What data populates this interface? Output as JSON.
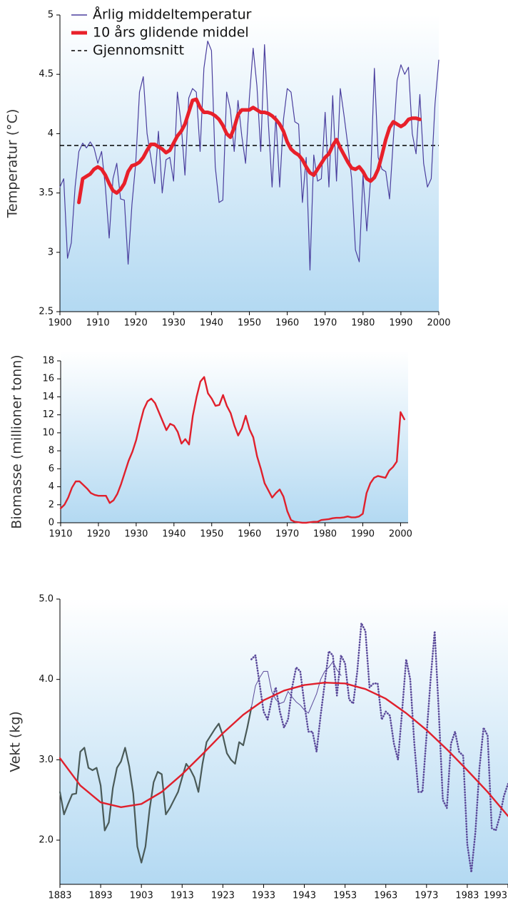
{
  "chart_data": [
    {
      "type": "line",
      "ylabel": "Temperatur (°C)",
      "x": [
        1900,
        1901,
        1902,
        1903,
        1904,
        1905,
        1906,
        1907,
        1908,
        1909,
        1910,
        1911,
        1912,
        1913,
        1914,
        1915,
        1916,
        1917,
        1918,
        1919,
        1920,
        1921,
        1922,
        1923,
        1924,
        1925,
        1926,
        1927,
        1928,
        1929,
        1930,
        1931,
        1932,
        1933,
        1934,
        1935,
        1936,
        1937,
        1938,
        1939,
        1940,
        1941,
        1942,
        1943,
        1944,
        1945,
        1946,
        1947,
        1948,
        1949,
        1950,
        1951,
        1952,
        1953,
        1954,
        1955,
        1956,
        1957,
        1958,
        1959,
        1960,
        1961,
        1962,
        1963,
        1964,
        1965,
        1966,
        1967,
        1968,
        1969,
        1970,
        1971,
        1972,
        1973,
        1974,
        1975,
        1976,
        1977,
        1978,
        1979,
        1980,
        1981,
        1982,
        1983,
        1984,
        1985,
        1986,
        1987,
        1988,
        1989,
        1990,
        1991,
        1992,
        1993,
        1994,
        1995,
        1996,
        1997,
        1998,
        1999,
        2000
      ],
      "series": [
        {
          "name": "Årlig middeltemperatur",
          "color": "#4b3f9e",
          "values": [
            3.55,
            3.62,
            2.95,
            3.08,
            3.55,
            3.85,
            3.92,
            3.88,
            3.93,
            3.88,
            3.75,
            3.85,
            3.55,
            3.12,
            3.62,
            3.75,
            3.45,
            3.44,
            2.9,
            3.4,
            3.75,
            4.35,
            4.48,
            4.0,
            3.8,
            3.58,
            4.02,
            3.5,
            3.78,
            3.8,
            3.6,
            4.35,
            4.08,
            3.65,
            4.3,
            4.38,
            4.35,
            3.85,
            4.55,
            4.78,
            4.7,
            3.72,
            3.42,
            3.44,
            4.35,
            4.2,
            3.85,
            4.28,
            3.98,
            3.75,
            4.3,
            4.72,
            4.4,
            3.85,
            4.75,
            4.1,
            3.55,
            4.15,
            3.55,
            4.12,
            4.38,
            4.35,
            4.1,
            4.08,
            3.42,
            3.8,
            2.85,
            3.82,
            3.6,
            3.62,
            4.18,
            3.55,
            4.32,
            3.6,
            4.38,
            4.15,
            3.9,
            3.62,
            3.02,
            2.92,
            3.65,
            3.18,
            3.62,
            4.55,
            3.8,
            3.7,
            3.68,
            3.45,
            3.95,
            4.45,
            4.58,
            4.5,
            4.56,
            4.0,
            3.83,
            4.33,
            3.75,
            3.55,
            3.62,
            4.25,
            4.62
          ]
        },
        {
          "name": "10 års glidende middel",
          "color": "#e8202a",
          "values": [
            null,
            null,
            null,
            null,
            null,
            3.42,
            3.62,
            3.64,
            3.66,
            3.7,
            3.72,
            3.7,
            3.65,
            3.58,
            3.52,
            3.5,
            3.53,
            3.58,
            3.68,
            3.73,
            3.74,
            3.76,
            3.8,
            3.86,
            3.91,
            3.91,
            3.89,
            3.87,
            3.84,
            3.86,
            3.92,
            3.98,
            4.02,
            4.08,
            4.18,
            4.28,
            4.29,
            4.22,
            4.18,
            4.18,
            4.17,
            4.15,
            4.12,
            4.07,
            4.0,
            3.97,
            4.05,
            4.16,
            4.2,
            4.2,
            4.2,
            4.22,
            4.2,
            4.18,
            4.18,
            4.17,
            4.15,
            4.12,
            4.08,
            4.02,
            3.93,
            3.87,
            3.84,
            3.82,
            3.78,
            3.72,
            3.67,
            3.65,
            3.7,
            3.75,
            3.8,
            3.83,
            3.9,
            3.95,
            3.88,
            3.82,
            3.76,
            3.71,
            3.7,
            3.72,
            3.68,
            3.62,
            3.6,
            3.63,
            3.7,
            3.82,
            3.95,
            4.05,
            4.1,
            4.08,
            4.06,
            4.08,
            4.12,
            4.13,
            4.13,
            4.12,
            null,
            null,
            null,
            null,
            null
          ]
        }
      ],
      "reference_line": {
        "name": "Gjennomsnitt",
        "value": 3.9,
        "color": "#000000",
        "style": "dashed"
      },
      "legend": "upper left",
      "xlim": [
        1900,
        2000
      ],
      "xticks": [
        1900,
        1910,
        1920,
        1930,
        1940,
        1950,
        1960,
        1970,
        1980,
        1990,
        2000
      ],
      "ylim": [
        2.5,
        5
      ],
      "yticks": [
        2.5,
        3,
        3.5,
        4,
        4.5,
        5
      ]
    },
    {
      "type": "line",
      "ylabel": "Biomasse (millioner tonn)",
      "x": [
        1910,
        1911,
        1912,
        1913,
        1914,
        1915,
        1916,
        1917,
        1918,
        1919,
        1920,
        1921,
        1922,
        1923,
        1924,
        1925,
        1926,
        1927,
        1928,
        1929,
        1930,
        1931,
        1932,
        1933,
        1934,
        1935,
        1936,
        1937,
        1938,
        1939,
        1940,
        1941,
        1942,
        1943,
        1944,
        1945,
        1946,
        1947,
        1948,
        1949,
        1950,
        1951,
        1952,
        1953,
        1954,
        1955,
        1956,
        1957,
        1958,
        1959,
        1960,
        1961,
        1962,
        1963,
        1964,
        1965,
        1966,
        1967,
        1968,
        1969,
        1970,
        1971,
        1972,
        1973,
        1974,
        1975,
        1976,
        1977,
        1978,
        1979,
        1980,
        1981,
        1982,
        1983,
        1984,
        1985,
        1986,
        1987,
        1988,
        1989,
        1990,
        1991,
        1992,
        1993,
        1994,
        1995,
        1996,
        1997,
        1998,
        1999,
        2000,
        2001
      ],
      "series": [
        {
          "color": "#e0202c",
          "values": [
            1.6,
            2.0,
            2.8,
            3.9,
            4.6,
            4.6,
            4.2,
            3.8,
            3.3,
            3.1,
            3.0,
            3.0,
            3.0,
            2.2,
            2.5,
            3.2,
            4.3,
            5.6,
            6.9,
            7.9,
            9.2,
            11.0,
            12.6,
            13.5,
            13.8,
            13.3,
            12.3,
            11.3,
            10.3,
            11.0,
            10.8,
            10.1,
            8.8,
            9.3,
            8.7,
            11.9,
            14.0,
            15.7,
            16.2,
            14.4,
            13.8,
            13.0,
            13.1,
            14.2,
            13.0,
            12.2,
            10.8,
            9.7,
            10.5,
            11.9,
            10.4,
            9.5,
            7.4,
            6.0,
            4.4,
            3.6,
            2.8,
            3.3,
            3.7,
            2.9,
            1.3,
            0.3,
            0.1,
            0.05,
            0,
            0,
            0.05,
            0.1,
            0.1,
            0.3,
            0.35,
            0.4,
            0.5,
            0.55,
            0.55,
            0.6,
            0.7,
            0.6,
            0.6,
            0.7,
            1.0,
            3.3,
            4.4,
            5.0,
            5.2,
            5.1,
            5.0,
            5.8,
            6.2,
            6.8,
            12.3,
            11.5
          ]
        }
      ],
      "xlim": [
        1910,
        2002
      ],
      "xticks": [
        1910,
        1920,
        1930,
        1940,
        1950,
        1960,
        1970,
        1980,
        1990,
        2000
      ],
      "ylim": [
        0,
        18
      ],
      "yticks": [
        0,
        2,
        4,
        6,
        8,
        10,
        12,
        14,
        16,
        18
      ]
    },
    {
      "type": "line",
      "ylabel": "Vekt (kg)",
      "series": [
        {
          "color": "#4a5a58",
          "x": [
            1883,
            1884,
            1885,
            1886,
            1887,
            1888,
            1889,
            1890,
            1891,
            1892,
            1893,
            1894,
            1895,
            1896,
            1897,
            1898,
            1899,
            1900,
            1901,
            1902,
            1903,
            1904,
            1905,
            1906,
            1907,
            1908,
            1909,
            1910,
            1911,
            1912,
            1913,
            1914,
            1915,
            1916,
            1917,
            1918,
            1919,
            1920,
            1921,
            1922,
            1923,
            1924,
            1925,
            1926,
            1927,
            1928,
            1929,
            1930
          ],
          "values": [
            2.6,
            2.32,
            2.45,
            2.57,
            2.58,
            3.1,
            3.15,
            2.9,
            2.87,
            2.9,
            2.68,
            2.12,
            2.22,
            2.65,
            2.9,
            2.98,
            3.15,
            2.92,
            2.58,
            1.92,
            1.72,
            1.92,
            2.38,
            2.72,
            2.85,
            2.82,
            2.32,
            2.4,
            2.5,
            2.6,
            2.78,
            2.95,
            2.88,
            2.78,
            2.6,
            2.95,
            3.22,
            3.3,
            3.38,
            3.45,
            3.3,
            3.08,
            3.0,
            2.95,
            3.22,
            3.18,
            3.4,
            3.65
          ]
        },
        {
          "color": "#5b4a9a",
          "x": [
            1930,
            1931,
            1932,
            1933,
            1934,
            1935,
            1936,
            1937,
            1938,
            1939,
            1940,
            1941,
            1942,
            1943,
            1944,
            1945,
            1946,
            1947,
            1948,
            1949,
            1950,
            1951,
            1952
          ],
          "values": [
            3.65,
            3.92,
            4.02,
            4.1,
            4.1,
            3.85,
            3.75,
            3.7,
            3.72,
            3.85,
            3.78,
            3.72,
            3.68,
            3.62,
            3.58,
            3.7,
            3.82,
            4.0,
            4.1,
            4.15,
            4.22,
            4.12,
            4.05
          ]
        },
        {
          "color": "#5b4a9a",
          "style": "dotted",
          "x": [
            1930,
            1931,
            1932,
            1933,
            1934,
            1935,
            1936,
            1937,
            1938,
            1939,
            1940,
            1941,
            1942,
            1943,
            1944,
            1945,
            1946,
            1947,
            1948,
            1949,
            1950,
            1951,
            1952,
            1953,
            1954,
            1955,
            1956,
            1957,
            1958,
            1959,
            1960,
            1961,
            1962,
            1963,
            1964,
            1965,
            1966,
            1967,
            1968,
            1969,
            1970,
            1971,
            1972,
            1973,
            1974,
            1975,
            1976,
            1977,
            1978,
            1979,
            1980,
            1981,
            1982,
            1983,
            1984,
            1985,
            1986,
            1987,
            1988,
            1989,
            1990,
            1991,
            1992,
            1993
          ],
          "values": [
            4.25,
            4.3,
            3.95,
            3.6,
            3.5,
            3.75,
            3.9,
            3.6,
            3.4,
            3.5,
            3.9,
            4.15,
            4.1,
            3.7,
            3.35,
            3.35,
            3.1,
            3.55,
            3.95,
            4.35,
            4.3,
            3.8,
            4.3,
            4.2,
            3.75,
            3.7,
            4.1,
            4.7,
            4.6,
            3.9,
            3.95,
            3.95,
            3.5,
            3.6,
            3.55,
            3.2,
            3.0,
            3.6,
            4.25,
            4.0,
            3.2,
            2.6,
            2.6,
            3.3,
            4.0,
            4.6,
            3.6,
            2.5,
            2.4,
            3.2,
            3.35,
            3.1,
            3.05,
            1.95,
            1.6,
            2.1,
            2.9,
            3.4,
            3.3,
            2.15,
            2.12,
            2.3,
            2.55,
            2.7
          ]
        },
        {
          "color": "#e0202c",
          "x": [
            1883,
            1888,
            1893,
            1898,
            1903,
            1908,
            1913,
            1918,
            1923,
            1928,
            1933,
            1938,
            1943,
            1948,
            1953,
            1958,
            1963,
            1968,
            1973,
            1978,
            1983,
            1988,
            1993
          ],
          "values": [
            3.02,
            2.68,
            2.47,
            2.41,
            2.45,
            2.6,
            2.82,
            3.07,
            3.33,
            3.56,
            3.74,
            3.86,
            3.93,
            3.96,
            3.95,
            3.88,
            3.76,
            3.58,
            3.37,
            3.13,
            2.87,
            2.6,
            2.3
          ]
        }
      ],
      "xlim": [
        1883,
        1993
      ],
      "xticks": [
        1883,
        1893,
        1903,
        1913,
        1923,
        1933,
        1943,
        1953,
        1963,
        1973,
        1983,
        1993
      ],
      "ylim": [
        1.45,
        5
      ],
      "yticks": [
        {
          "value": 2,
          "label": "2.0"
        },
        {
          "value": 3,
          "label": "3.0"
        },
        {
          "value": 4,
          "label": "4.0"
        },
        {
          "value": 5,
          "label": "5.0"
        }
      ]
    }
  ]
}
